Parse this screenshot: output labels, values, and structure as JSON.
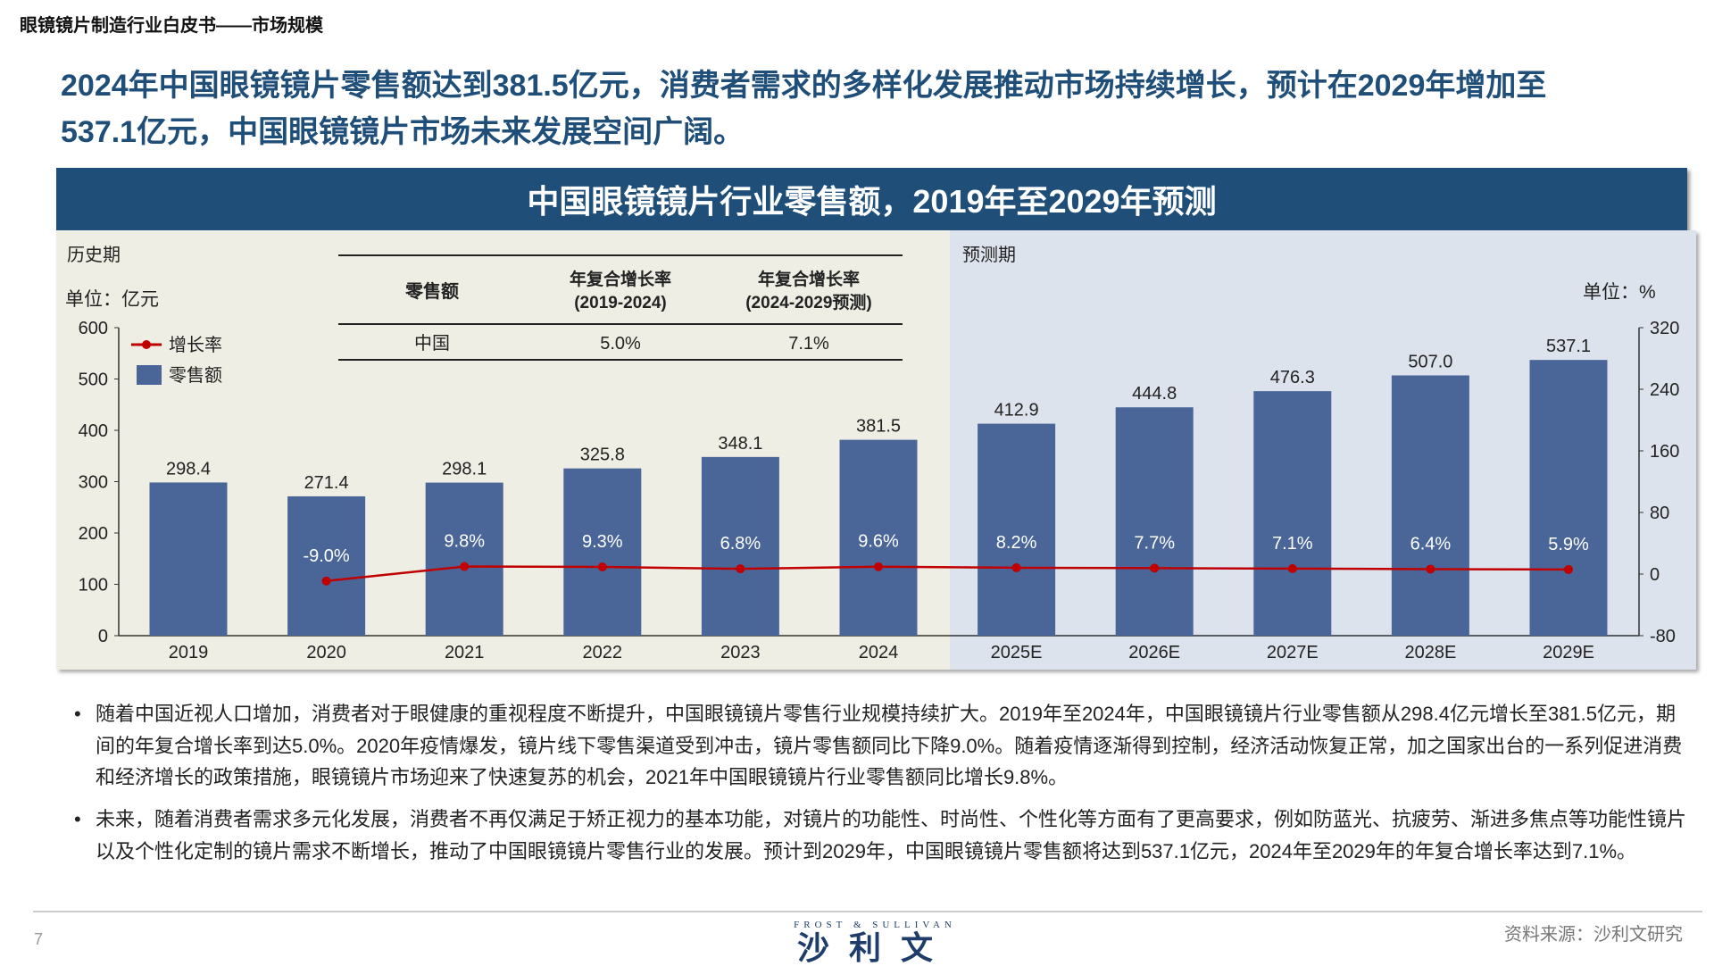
{
  "doc_title": "眼镜镜片制造行业白皮书——市场规模",
  "headline": [
    "2024年中国眼镜镜片零售额达到381.5亿元，消费者需求的多样化发展推动市场持续增长，预计在2029年增加至",
    "537.1亿元，中国眼镜镜片市场未来发展空间广阔。"
  ],
  "chart_data": {
    "type": "bar+line",
    "title": "中国眼镜镜片行业零售额，2019年至2029年预测",
    "period_labels": {
      "historical": "历史期",
      "forecast": "预测期"
    },
    "left_unit": "单位：亿元",
    "right_unit": "单位：%",
    "categories": [
      "2019",
      "2020",
      "2021",
      "2022",
      "2023",
      "2024",
      "2025E",
      "2026E",
      "2027E",
      "2028E",
      "2029E"
    ],
    "series": [
      {
        "name": "零售额",
        "type": "bar",
        "axis": "left",
        "color": "#4a6699",
        "values": [
          298.4,
          271.4,
          298.1,
          325.8,
          348.1,
          381.5,
          412.9,
          444.8,
          476.3,
          507.0,
          537.1
        ],
        "labels": [
          "298.4",
          "271.4",
          "298.1",
          "325.8",
          "348.1",
          "381.5",
          "412.9",
          "444.8",
          "476.3",
          "507.0",
          "537.1"
        ]
      },
      {
        "name": "增长率",
        "type": "line",
        "axis": "right",
        "color": "#c00000",
        "values": [
          null,
          -9.0,
          9.8,
          9.3,
          6.8,
          9.6,
          8.2,
          7.7,
          7.1,
          6.4,
          5.9
        ],
        "labels": [
          "",
          "-9.0%",
          "9.8%",
          "9.3%",
          "6.8%",
          "9.6%",
          "8.2%",
          "7.7%",
          "7.1%",
          "6.4%",
          "5.9%"
        ]
      }
    ],
    "ylim_left": [
      0,
      600
    ],
    "yticks_left": [
      "0",
      "100",
      "200",
      "300",
      "400",
      "500",
      "600"
    ],
    "ylim_right": [
      -80,
      320
    ],
    "yticks_right": [
      "-80",
      "0",
      "80",
      "160",
      "240",
      "320"
    ],
    "legend": "top-left",
    "colors": {
      "historical_bg": "#eeeee4",
      "forecast_bg": "#dde3ec"
    },
    "cagr_table": {
      "headers": [
        "零售额",
        "年复合增长率\n(2019-2024)",
        "年复合增长率\n(2024-2029预测)"
      ],
      "rows": [
        [
          "中国",
          "5.0%",
          "7.1%"
        ]
      ]
    }
  },
  "bullets": [
    "随着中国近视人口增加，消费者对于眼健康的重视程度不断提升，中国眼镜镜片零售行业规模持续扩大。2019年至2024年，中国眼镜镜片行业零售额从298.4亿元增长至381.5亿元，期间的年复合增长率到达5.0%。2020年疫情爆发，镜片线下零售渠道受到冲击，镜片零售额同比下降9.0%。随着疫情逐渐得到控制，经济活动恢复正常，加之国家出台的一系列促进消费和经济增长的政策措施，眼镜镜片市场迎来了快速复苏的机会，2021年中国眼镜镜片行业零售额同比增长9.8%。",
    "未来，随着消费者需求多元化发展，消费者不再仅满足于矫正视力的基本功能，对镜片的功能性、时尚性、个性化等方面有了更高要求，例如防蓝光、抗疲劳、渐进多焦点等功能性镜片以及个性化定制的镜片需求不断增长，推动了中国眼镜镜片零售行业的发展。预计到2029年，中国眼镜镜片零售额将达到537.1亿元，2024年至2029年的年复合增长率达到7.1%。"
  ],
  "bullet_symbol": "•",
  "footer": {
    "page": "7",
    "source": "资料来源：沙利文研究",
    "logo_en": "FROST & SULLIVAN",
    "logo_cn": "沙利文"
  }
}
